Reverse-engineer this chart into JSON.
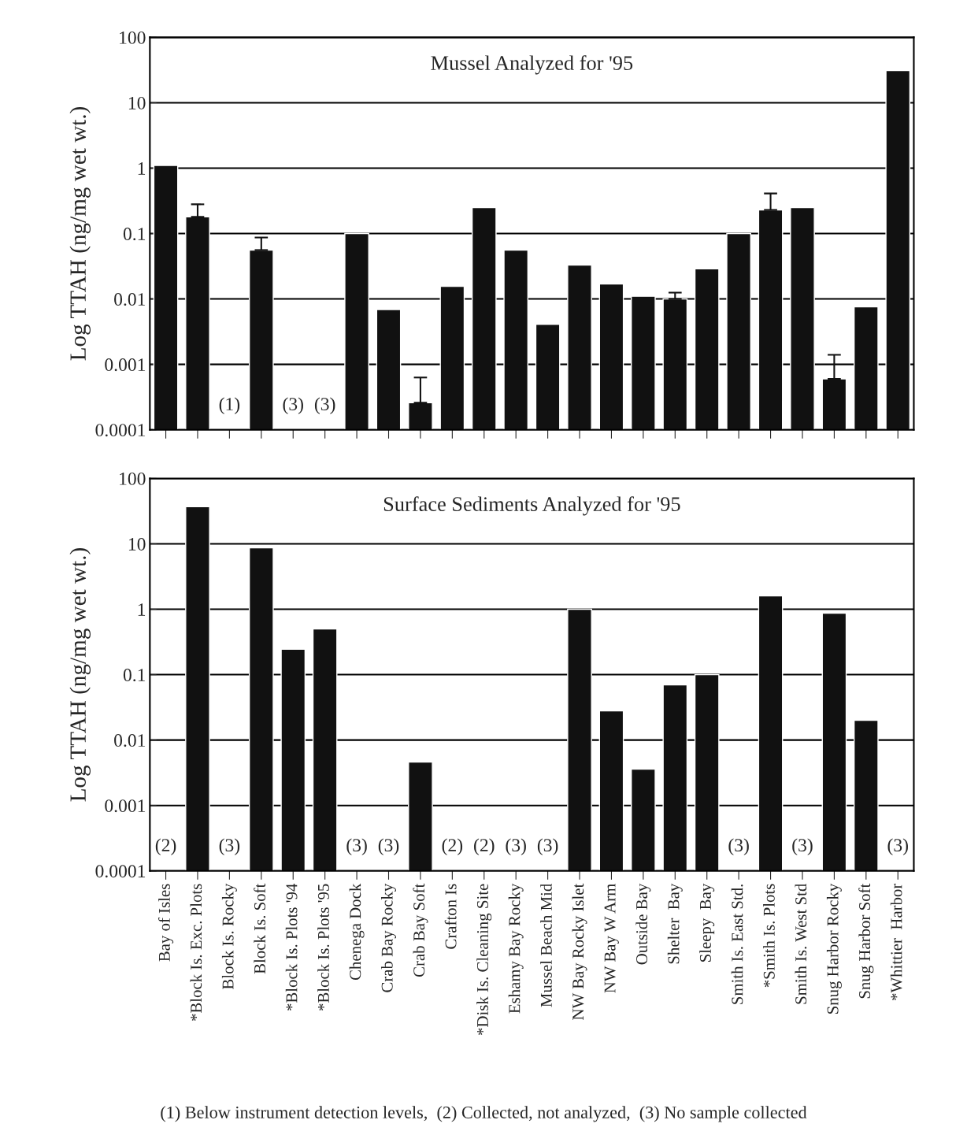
{
  "chart_data": [
    {
      "type": "bar",
      "title": "Mussel Analyzed for '95",
      "ylabel": "Log TTAH (ng/mg wet wt.)",
      "log": true,
      "ylim": [
        0.0001,
        100
      ],
      "yticks": [
        0.0001,
        0.001,
        0.01,
        0.1,
        1,
        10,
        100
      ],
      "grid": "y",
      "tick_labels": "y",
      "color": "#111111",
      "categories": [
        null,
        null,
        null,
        null,
        null,
        null,
        null,
        null,
        null,
        null,
        null,
        null,
        null,
        null,
        null,
        null,
        null,
        null,
        null,
        null,
        null,
        null,
        null,
        null
      ],
      "values": [
        1.1,
        0.18,
        null,
        0.056,
        null,
        null,
        0.1,
        0.0069,
        0.00026,
        0.0156,
        0.25,
        0.056,
        0.0041,
        0.033,
        0.017,
        0.011,
        0.01,
        0.029,
        0.1,
        0.23,
        0.25,
        0.0006,
        0.0076,
        31
      ],
      "errors": [
        null,
        [
          0.18,
          0.28
        ],
        null,
        [
          0.056,
          0.087
        ],
        null,
        null,
        null,
        null,
        [
          0.00026,
          0.00063
        ],
        null,
        null,
        null,
        null,
        null,
        null,
        null,
        [
          0.01,
          0.0125
        ],
        null,
        null,
        [
          0.23,
          0.41
        ],
        null,
        [
          0.0006,
          0.0014
        ],
        null,
        null
      ],
      "value_labels": [
        null,
        null,
        "(1)",
        null,
        "(3)",
        "(3)",
        null,
        null,
        null,
        null,
        null,
        null,
        null,
        null,
        null,
        null,
        null,
        null,
        null,
        null,
        null,
        null,
        null,
        null
      ]
    },
    {
      "type": "bar",
      "title": "Surface Sediments Analyzed for '95",
      "ylabel": "Log TTAH (ng/mg wet wt.)",
      "log": true,
      "ylim": [
        0.0001,
        100
      ],
      "yticks": [
        0.0001,
        0.001,
        0.01,
        0.1,
        1,
        10,
        100
      ],
      "grid": "y",
      "color": "#111111",
      "categories": [
        "Bay of Isles",
        "*Block Is. Exc. Plots",
        "Block Is. Rocky",
        "Block Is. Soft",
        "*Block Is. Plots '94",
        "*Block Is. Plots '95",
        "Chenega Dock",
        "Crab Bay Rocky",
        "Crab Bay Soft",
        "Crafton Is",
        "*Disk Is. Cleaning Site",
        "Eshamy Bay Rocky",
        "Mussel Beach Mid",
        "NW Bay Rocky Islet",
        "NW Bay W Arm",
        "Outside Bay",
        "Shelter  Bay",
        "Sleepy  Bay",
        "Smith Is. East Std.",
        "*Smith Is. Plots",
        "Smith Is. West Std",
        "Snug Harbor Rocky",
        "Snug Harbor Soft",
        "*Whittier  Harbor"
      ],
      "values": [
        null,
        37,
        null,
        8.7,
        0.245,
        0.5,
        null,
        null,
        0.0046,
        null,
        null,
        null,
        null,
        1.0,
        0.028,
        0.0036,
        0.07,
        0.1,
        null,
        1.6,
        null,
        0.87,
        0.02,
        null
      ],
      "value_labels": [
        "(2)",
        null,
        "(3)",
        null,
        null,
        null,
        "(3)",
        "(3)",
        null,
        "(2)",
        "(2)",
        "(3)",
        "(3)",
        null,
        null,
        null,
        null,
        null,
        "(3)",
        null,
        "(3)",
        null,
        null,
        "(3)"
      ],
      "annotations": [
        "(1) Below instrument detection levels,  (2) Collected, not analyzed,  (3) No sample collected"
      ]
    }
  ]
}
